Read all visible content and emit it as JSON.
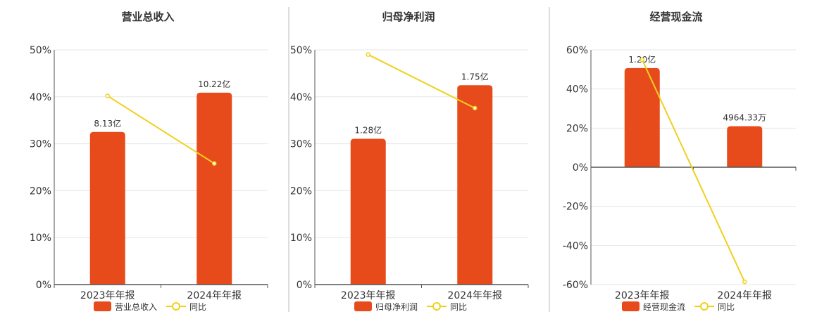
{
  "colors": {
    "bar": "#e84b1b",
    "line": "#f0d01e",
    "grid": "#e6e6e6",
    "axis": "#555555",
    "divider": "#bbbbbb"
  },
  "chart_data": [
    {
      "type": "bar",
      "title": "营业总收入",
      "categories": [
        "2023年年报",
        "2024年年报"
      ],
      "bar_series": {
        "name": "营业总收入",
        "values": [
          8.13,
          10.22
        ],
        "labels": [
          "8.13亿",
          "10.22亿"
        ],
        "unit": "亿"
      },
      "line_series": {
        "name": "同比",
        "values": [
          40.2,
          25.8
        ]
      },
      "ylim": [
        0,
        50
      ],
      "yticks": [
        0,
        10,
        20,
        30,
        40,
        50
      ],
      "ytick_labels": [
        "0%",
        "10%",
        "20%",
        "30%",
        "40%",
        "50%"
      ],
      "bar_ymax": 12.5,
      "grid": true,
      "legend": "bottom"
    },
    {
      "type": "bar",
      "title": "归母净利润",
      "categories": [
        "2023年年报",
        "2024年年报"
      ],
      "bar_series": {
        "name": "归母净利润",
        "values": [
          1.28,
          1.75
        ],
        "labels": [
          "1.28亿",
          "1.75亿"
        ],
        "unit": "亿"
      },
      "line_series": {
        "name": "同比",
        "values": [
          49.0,
          37.6
        ]
      },
      "ylim": [
        0,
        50
      ],
      "yticks": [
        0,
        10,
        20,
        30,
        40,
        50
      ],
      "ytick_labels": [
        "0%",
        "10%",
        "20%",
        "30%",
        "40%",
        "50%"
      ],
      "bar_ymax": 2.06,
      "grid": true,
      "legend": "bottom"
    },
    {
      "type": "bar",
      "title": "经营现金流",
      "categories": [
        "2023年年报",
        "2024年年报"
      ],
      "bar_series": {
        "name": "经营现金流",
        "values": [
          1.2,
          0.4964
        ],
        "labels": [
          "1.20亿",
          "4964.33万"
        ],
        "unit": "亿"
      },
      "line_series": {
        "name": "同比",
        "values": [
          55.0,
          -58.6
        ]
      },
      "ylim": [
        -60,
        60
      ],
      "yticks": [
        -60,
        -40,
        -20,
        0,
        20,
        40,
        60
      ],
      "ytick_labels": [
        "-60%",
        "-40%",
        "-20%",
        "0%",
        "20%",
        "40%",
        "60%"
      ],
      "bar_ymax": 1.42,
      "grid": true,
      "legend": "bottom"
    }
  ]
}
